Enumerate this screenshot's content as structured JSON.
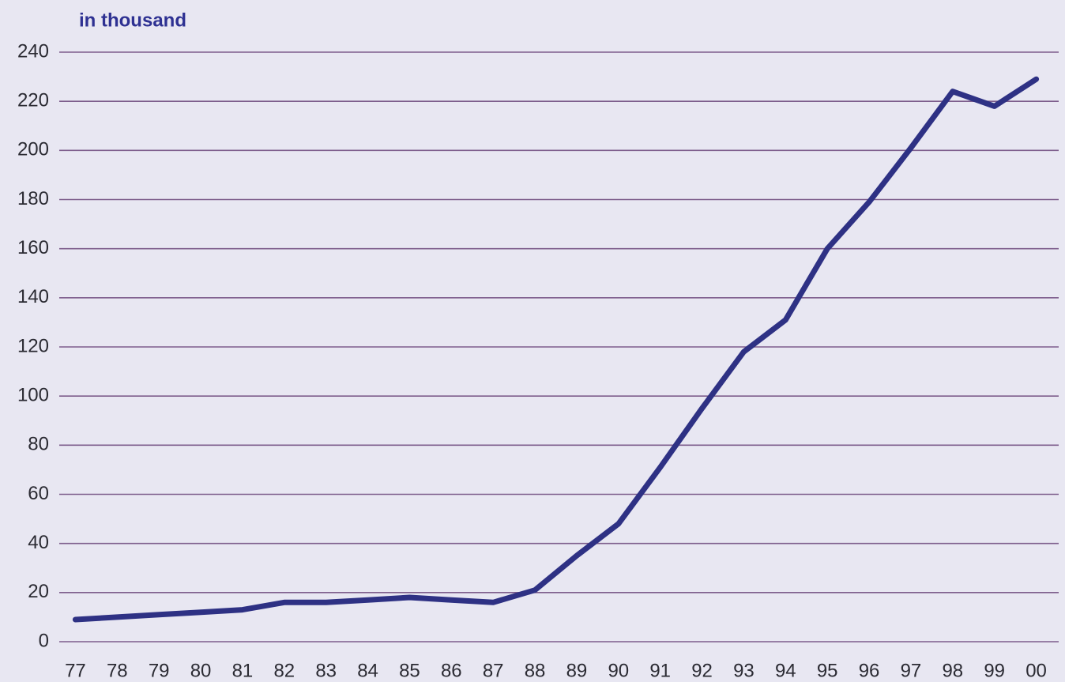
{
  "chart_data": {
    "type": "line",
    "title": "in thousand",
    "categories": [
      "77",
      "78",
      "79",
      "80",
      "81",
      "82",
      "83",
      "84",
      "85",
      "86",
      "87",
      "88",
      "89",
      "90",
      "91",
      "92",
      "93",
      "94",
      "95",
      "96",
      "97",
      "98",
      "99",
      "00"
    ],
    "values": [
      9,
      10,
      11,
      12,
      13,
      16,
      16,
      17,
      18,
      17,
      16,
      21,
      35,
      48,
      71,
      95,
      118,
      131,
      160,
      179,
      201,
      224,
      218,
      229
    ],
    "color": "#2e3184",
    "ylim": [
      0,
      240
    ],
    "yticks": [
      0,
      20,
      40,
      60,
      80,
      100,
      120,
      140,
      160,
      180,
      200,
      220,
      240
    ],
    "grid": true
  }
}
